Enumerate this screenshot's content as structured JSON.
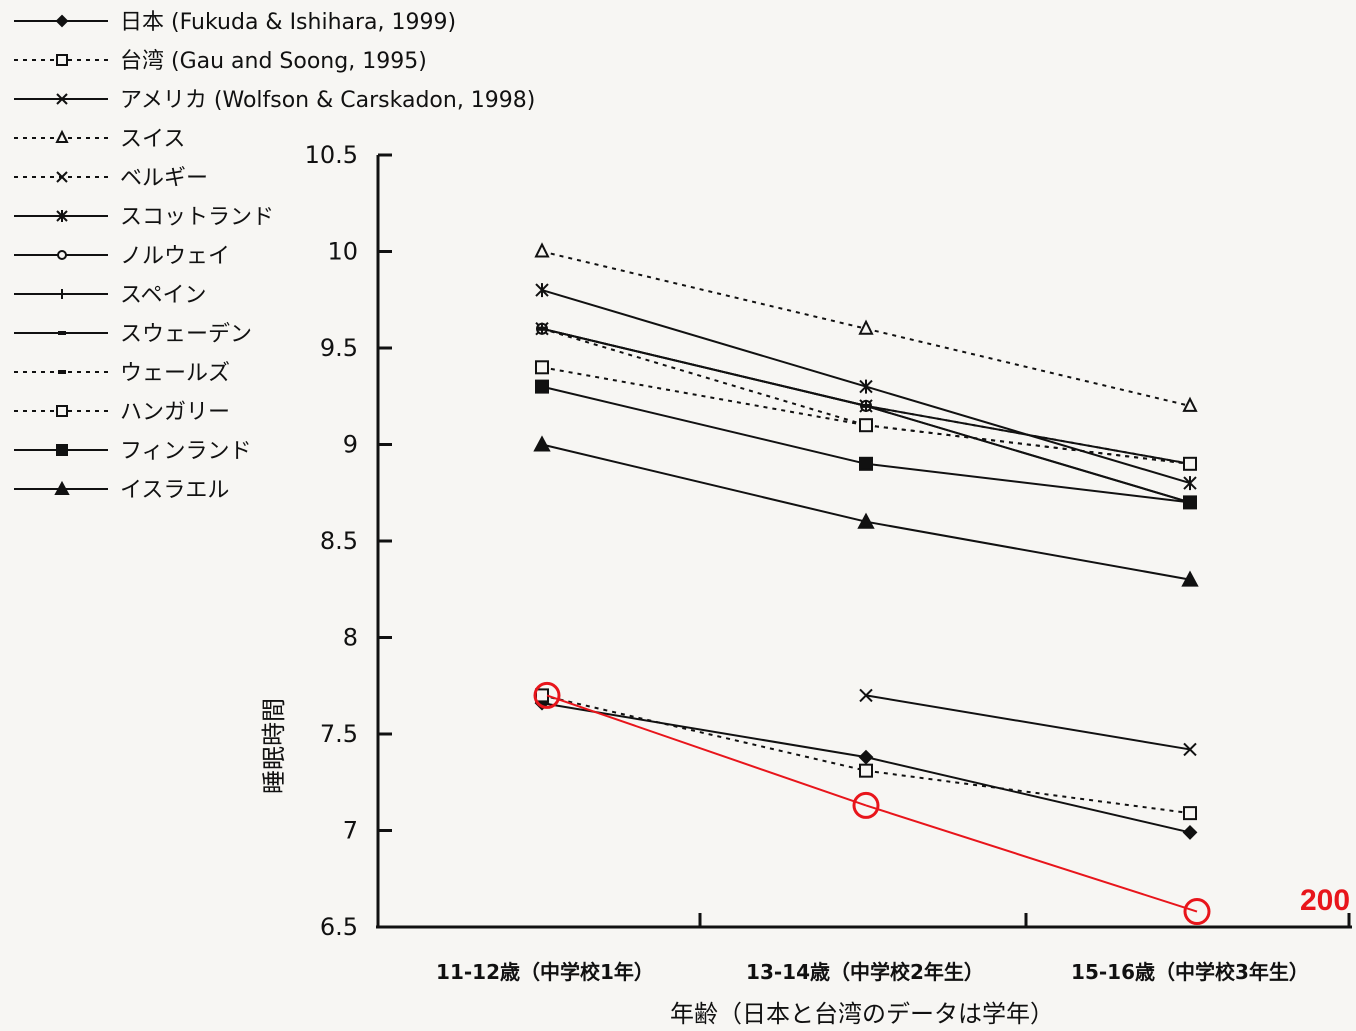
{
  "chart_data": {
    "type": "line",
    "xlabel": "年齢（日本と台湾のデータは学年）",
    "ylabel": "睡眠時間",
    "ylim": [
      6.5,
      10.5
    ],
    "yticks": [
      "10.5",
      "10",
      "9.5",
      "9",
      "8.5",
      "8",
      "7.5",
      "7",
      "6.5"
    ],
    "categories": [
      "11-12歳（中学校1年）",
      "13-14歳（中学校2年生）",
      "15-16歳（中学校3年生）"
    ],
    "grid": false,
    "legend_position": "top-left",
    "series": [
      {
        "name": "日本 (Fukuda & Ishihara, 1999)",
        "marker": "diamond",
        "dash": "solid",
        "values": [
          7.66,
          7.38,
          6.99
        ]
      },
      {
        "name": "台湾 (Gau and Soong, 1995)",
        "marker": "square-open",
        "dash": "dotted",
        "values": [
          7.7,
          7.31,
          7.09
        ]
      },
      {
        "name": "アメリカ (Wolfson & Carskadon, 1998)",
        "marker": "x",
        "dash": "solid",
        "values": [
          null,
          7.7,
          7.42
        ]
      },
      {
        "name": "スイス",
        "marker": "triangle-open",
        "dash": "dotted",
        "values": [
          10.0,
          9.6,
          9.2
        ]
      },
      {
        "name": "ベルギー",
        "marker": "x",
        "dash": "dotted",
        "values": [
          9.6,
          9.2,
          8.9
        ]
      },
      {
        "name": "スコットランド",
        "marker": "asterisk",
        "dash": "solid",
        "values": [
          9.8,
          9.3,
          8.8
        ]
      },
      {
        "name": "ノルウェイ",
        "marker": "circle-open",
        "dash": "solid",
        "values": [
          9.6,
          9.2,
          8.7
        ]
      },
      {
        "name": "スペイン",
        "marker": "plus",
        "dash": "solid",
        "values": [
          9.6,
          9.2,
          8.9
        ]
      },
      {
        "name": "スウェーデン",
        "marker": "dash",
        "dash": "solid",
        "values": [
          9.6,
          9.2,
          8.7
        ]
      },
      {
        "name": "ウェールズ",
        "marker": "dash",
        "dash": "dotted",
        "values": [
          9.6,
          9.1,
          8.9
        ]
      },
      {
        "name": "ハンガリー",
        "marker": "square-open",
        "dash": "dotted",
        "values": [
          9.4,
          9.1,
          8.9
        ]
      },
      {
        "name": "フィンランド",
        "marker": "square",
        "dash": "solid",
        "values": [
          9.3,
          8.9,
          8.7
        ]
      },
      {
        "name": "イスラエル",
        "marker": "triangle",
        "dash": "solid",
        "values": [
          9.0,
          8.6,
          8.3
        ]
      }
    ],
    "annotation": {
      "text": "200",
      "color": "#e8151b",
      "values": [
        7.7,
        7.13,
        6.58
      ]
    }
  }
}
